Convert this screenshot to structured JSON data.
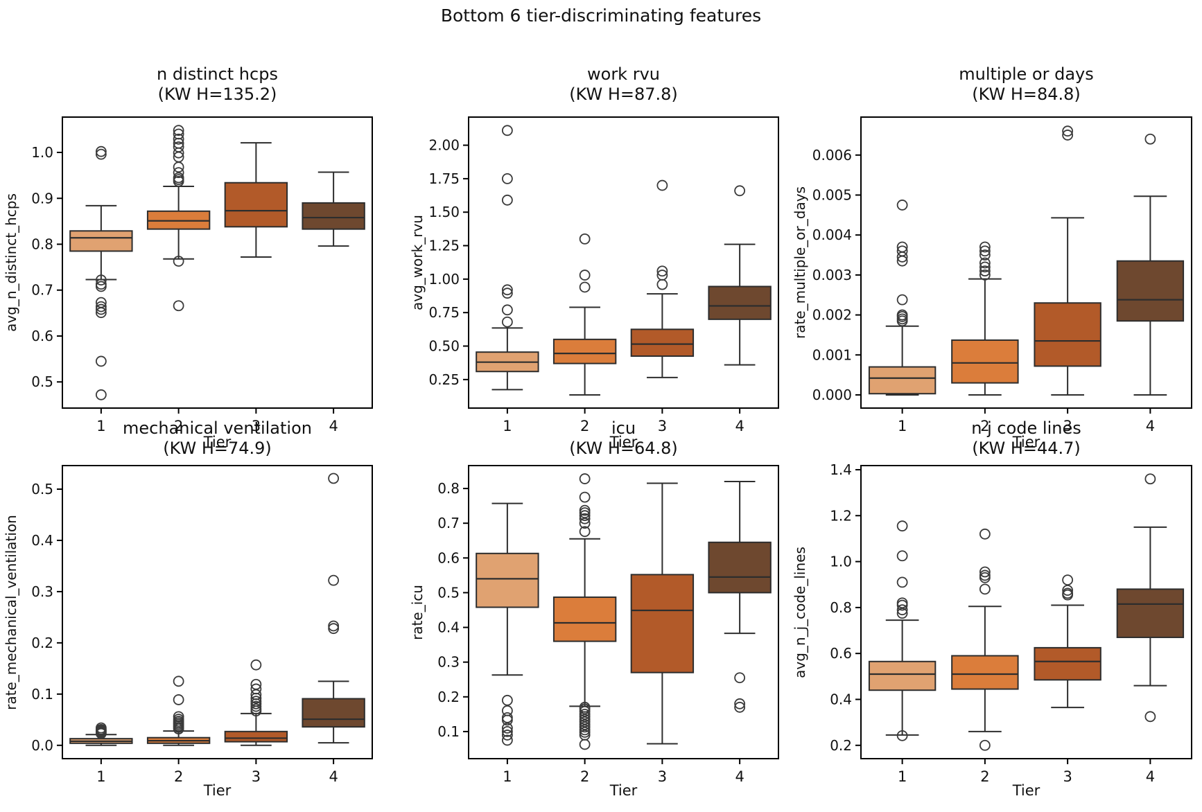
{
  "figure": {
    "title": "Bottom 6 tier-discriminating features",
    "xlabel": "Tier",
    "x_categories": [
      "1",
      "2",
      "3",
      "4"
    ]
  },
  "colors": {
    "tier_fills": [
      "#e0a271",
      "#db7d3b",
      "#b25a29",
      "#6e482f"
    ],
    "line": "#2d2d2d",
    "flier_edge": "#3a3a3a",
    "spine": "#000000",
    "background": "#ffffff"
  },
  "chart_data": [
    {
      "type": "boxplot",
      "title": "n distinct hcps",
      "kw_label": "(KW H=135.2)",
      "ylabel": "avg_n_distinct_hcps",
      "xlabel": "Tier",
      "categories": [
        "1",
        "2",
        "3",
        "4"
      ],
      "yticks": [
        "0.5",
        "0.6",
        "0.7",
        "0.8",
        "0.9",
        "1.0"
      ],
      "ylim": [
        0.443,
        1.077
      ],
      "boxes": [
        {
          "tier": "1",
          "whislo": 0.723,
          "q1": 0.785,
          "med": 0.814,
          "q3": 0.829,
          "whishi": 0.884,
          "fliers": [
            1.002,
            0.996,
            0.722,
            0.713,
            0.708,
            0.673,
            0.664,
            0.658,
            0.651,
            0.545,
            0.472
          ]
        },
        {
          "tier": "2",
          "whislo": 0.768,
          "q1": 0.833,
          "med": 0.851,
          "q3": 0.872,
          "whishi": 0.926,
          "fliers": [
            1.048,
            1.04,
            1.029,
            1.02,
            1.012,
            0.999,
            0.99,
            0.968,
            0.956,
            0.945,
            0.941,
            0.937,
            0.763,
            0.666
          ]
        },
        {
          "tier": "3",
          "whislo": 0.772,
          "q1": 0.838,
          "med": 0.873,
          "q3": 0.934,
          "whishi": 1.021,
          "fliers": []
        },
        {
          "tier": "4",
          "whislo": 0.796,
          "q1": 0.833,
          "med": 0.858,
          "q3": 0.89,
          "whishi": 0.957,
          "fliers": []
        }
      ]
    },
    {
      "type": "boxplot",
      "title": "work rvu",
      "kw_label": "(KW H=87.8)",
      "ylabel": "avg_work_rvu",
      "xlabel": "Tier",
      "categories": [
        "1",
        "2",
        "3",
        "4"
      ],
      "yticks": [
        "0.25",
        "0.50",
        "0.75",
        "1.00",
        "1.25",
        "1.50",
        "1.75",
        "2.00"
      ],
      "ylim": [
        0.037,
        2.21
      ],
      "boxes": [
        {
          "tier": "1",
          "whislo": 0.175,
          "q1": 0.31,
          "med": 0.38,
          "q3": 0.455,
          "whishi": 0.635,
          "fliers": [
            2.11,
            1.75,
            1.59,
            0.92,
            0.895,
            0.77,
            0.68
          ]
        },
        {
          "tier": "2",
          "whislo": 0.135,
          "q1": 0.37,
          "med": 0.445,
          "q3": 0.55,
          "whishi": 0.79,
          "fliers": [
            1.3,
            1.03,
            0.94
          ]
        },
        {
          "tier": "3",
          "whislo": 0.265,
          "q1": 0.425,
          "med": 0.515,
          "q3": 0.625,
          "whishi": 0.89,
          "fliers": [
            1.7,
            1.06,
            1.03,
            0.96
          ]
        },
        {
          "tier": "4",
          "whislo": 0.36,
          "q1": 0.7,
          "med": 0.8,
          "q3": 0.945,
          "whishi": 1.26,
          "fliers": [
            1.66
          ]
        }
      ]
    },
    {
      "type": "boxplot",
      "title": "multiple or days",
      "kw_label": "(KW H=84.8)",
      "ylabel": "rate_multiple_or_days",
      "xlabel": "Tier",
      "categories": [
        "1",
        "2",
        "3",
        "4"
      ],
      "yticks": [
        "0.000",
        "0.001",
        "0.002",
        "0.003",
        "0.004",
        "0.005",
        "0.006"
      ],
      "ylim": [
        -0.00033,
        0.00695
      ],
      "boxes": [
        {
          "tier": "1",
          "whislo": 0.0,
          "q1": 3e-05,
          "med": 0.00042,
          "q3": 0.0007,
          "whishi": 0.00172,
          "fliers": [
            0.00475,
            0.0037,
            0.0036,
            0.00345,
            0.00335,
            0.00238,
            0.002,
            0.00196,
            0.0019,
            0.00185
          ]
        },
        {
          "tier": "2",
          "whislo": 0.0,
          "q1": 0.0003,
          "med": 0.0008,
          "q3": 0.00137,
          "whishi": 0.0029,
          "fliers": [
            0.0037,
            0.0036,
            0.0035,
            0.0033,
            0.0032,
            0.0031,
            0.003
          ]
        },
        {
          "tier": "3",
          "whislo": 0.0,
          "q1": 0.00072,
          "med": 0.00135,
          "q3": 0.0023,
          "whishi": 0.00443,
          "fliers": [
            0.0066,
            0.0065
          ]
        },
        {
          "tier": "4",
          "whislo": 0.0,
          "q1": 0.00185,
          "med": 0.00238,
          "q3": 0.00335,
          "whishi": 0.00497,
          "fliers": [
            0.0064
          ]
        }
      ]
    },
    {
      "type": "boxplot",
      "title": "mechanical ventilation",
      "kw_label": "(KW H=74.9)",
      "ylabel": "rate_mechanical_ventilation",
      "xlabel": "Tier",
      "categories": [
        "1",
        "2",
        "3",
        "4"
      ],
      "yticks": [
        "0.0",
        "0.1",
        "0.2",
        "0.3",
        "0.4",
        "0.5"
      ],
      "ylim": [
        -0.026,
        0.546
      ],
      "boxes": [
        {
          "tier": "1",
          "whislo": 0.0,
          "q1": 0.004,
          "med": 0.008,
          "q3": 0.013,
          "whishi": 0.021,
          "fliers": [
            0.034,
            0.031,
            0.029,
            0.027,
            0.025,
            0.023
          ]
        },
        {
          "tier": "2",
          "whislo": 0.0,
          "q1": 0.004,
          "med": 0.009,
          "q3": 0.015,
          "whishi": 0.028,
          "fliers": [
            0.125,
            0.089,
            0.056,
            0.051,
            0.047,
            0.044,
            0.041,
            0.038,
            0.035,
            0.032
          ]
        },
        {
          "tier": "3",
          "whislo": 0.0,
          "q1": 0.007,
          "med": 0.014,
          "q3": 0.027,
          "whishi": 0.062,
          "fliers": [
            0.157,
            0.119,
            0.11,
            0.099,
            0.092,
            0.086,
            0.081,
            0.076,
            0.071,
            0.067
          ]
        },
        {
          "tier": "4",
          "whislo": 0.005,
          "q1": 0.036,
          "med": 0.051,
          "q3": 0.091,
          "whishi": 0.125,
          "fliers": [
            0.521,
            0.322,
            0.233,
            0.228
          ]
        }
      ]
    },
    {
      "type": "boxplot",
      "title": "icu",
      "kw_label": "(KW H=64.8)",
      "ylabel": "rate_icu",
      "xlabel": "Tier",
      "categories": [
        "1",
        "2",
        "3",
        "4"
      ],
      "yticks": [
        "0.1",
        "0.2",
        "0.3",
        "0.4",
        "0.5",
        "0.6",
        "0.7",
        "0.8"
      ],
      "ylim": [
        0.022,
        0.866
      ],
      "boxes": [
        {
          "tier": "1",
          "whislo": 0.263,
          "q1": 0.458,
          "med": 0.54,
          "q3": 0.613,
          "whishi": 0.757,
          "fliers": [
            0.19,
            0.16,
            0.14,
            0.133,
            0.11,
            0.1,
            0.09,
            0.075
          ]
        },
        {
          "tier": "2",
          "whislo": 0.173,
          "q1": 0.36,
          "med": 0.413,
          "q3": 0.487,
          "whishi": 0.655,
          "fliers": [
            0.828,
            0.775,
            0.737,
            0.73,
            0.722,
            0.713,
            0.7,
            0.676,
            0.17,
            0.165,
            0.158,
            0.15,
            0.143,
            0.135,
            0.128,
            0.12,
            0.113,
            0.105,
            0.098,
            0.09,
            0.063
          ]
        },
        {
          "tier": "3",
          "whislo": 0.065,
          "q1": 0.27,
          "med": 0.449,
          "q3": 0.552,
          "whishi": 0.815,
          "fliers": []
        },
        {
          "tier": "4",
          "whislo": 0.383,
          "q1": 0.5,
          "med": 0.545,
          "q3": 0.645,
          "whishi": 0.82,
          "fliers": [
            0.255,
            0.18,
            0.17
          ]
        }
      ]
    },
    {
      "type": "boxplot",
      "title": "n j code lines",
      "kw_label": "(KW H=44.7)",
      "ylabel": "avg_n_j_code_lines",
      "xlabel": "Tier",
      "categories": [
        "1",
        "2",
        "3",
        "4"
      ],
      "yticks": [
        "0.2",
        "0.4",
        "0.6",
        "0.8",
        "1.0",
        "1.2",
        "1.4"
      ],
      "ylim": [
        0.142,
        1.418
      ],
      "boxes": [
        {
          "tier": "1",
          "whislo": 0.245,
          "q1": 0.44,
          "med": 0.51,
          "q3": 0.565,
          "whishi": 0.745,
          "fliers": [
            1.155,
            1.025,
            0.91,
            0.82,
            0.81,
            0.79,
            0.775,
            0.242
          ]
        },
        {
          "tier": "2",
          "whislo": 0.26,
          "q1": 0.445,
          "med": 0.51,
          "q3": 0.59,
          "whishi": 0.805,
          "fliers": [
            1.12,
            0.955,
            0.94,
            0.93,
            0.88,
            0.2
          ]
        },
        {
          "tier": "3",
          "whislo": 0.365,
          "q1": 0.485,
          "med": 0.565,
          "q3": 0.625,
          "whishi": 0.81,
          "fliers": [
            0.92,
            0.875,
            0.862,
            0.855
          ]
        },
        {
          "tier": "4",
          "whislo": 0.46,
          "q1": 0.67,
          "med": 0.815,
          "q3": 0.88,
          "whishi": 1.15,
          "fliers": [
            1.36,
            0.325
          ]
        }
      ]
    }
  ]
}
